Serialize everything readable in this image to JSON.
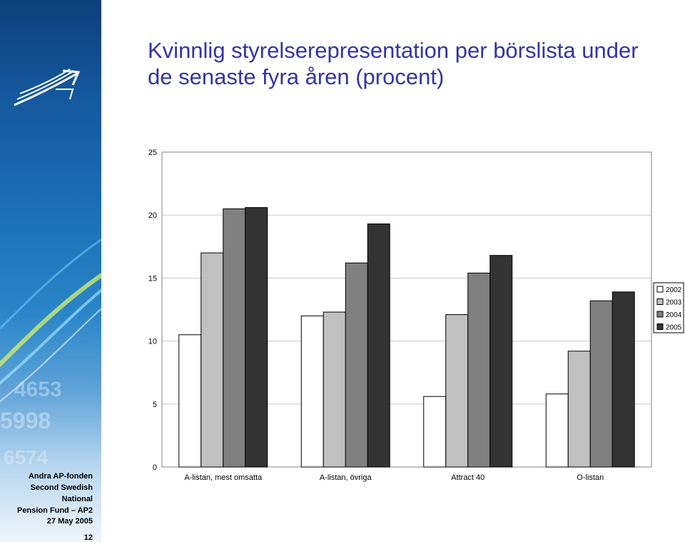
{
  "slide": {
    "title": "Kvinnlig styrelserepresentation per börslista under de senaste fyra åren (procent)",
    "organization": [
      "Andra AP-fonden",
      "Second Swedish National",
      "Pension Fund – AP2"
    ],
    "date": "27 May 2005",
    "page_number": "12",
    "logo_icon": "ap2-arrows-logo-icon"
  },
  "chart_data": {
    "type": "bar",
    "title": "Kvinnlig styrelserepresentation per börslista under de senaste fyra åren (procent)",
    "categories": [
      "A-listan, mest omsatta",
      "A-listan, övriga",
      "Attract 40",
      "O-listan"
    ],
    "series": [
      {
        "name": "2002",
        "values": [
          10.5,
          12.0,
          5.6,
          5.8
        ],
        "color": "#ffffff"
      },
      {
        "name": "2003",
        "values": [
          17.0,
          12.3,
          12.1,
          9.2
        ],
        "color": "#c0c0c0"
      },
      {
        "name": "2004",
        "values": [
          20.5,
          16.2,
          15.4,
          13.2
        ],
        "color": "#808080"
      },
      {
        "name": "2005",
        "values": [
          20.6,
          19.3,
          16.8,
          13.9
        ],
        "color": "#333333"
      }
    ],
    "ylim": [
      0,
      25
    ],
    "yticks": [
      0,
      5,
      10,
      15,
      20,
      25
    ],
    "grid": true,
    "legend": "right"
  }
}
